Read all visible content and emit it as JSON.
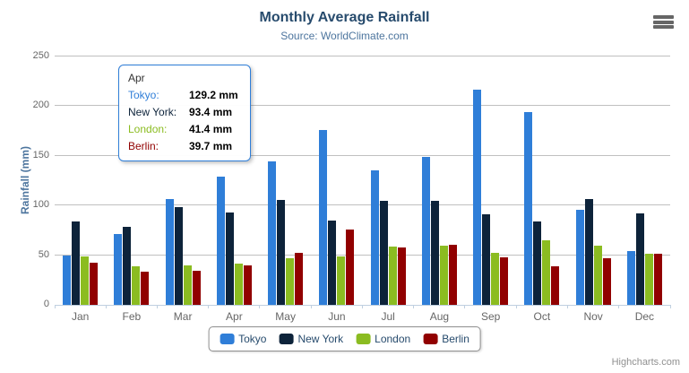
{
  "header": {
    "title": "Monthly Average Rainfall",
    "subtitle": "Source: WorldClimate.com"
  },
  "colors": {
    "title": "#274b6d",
    "subtitle": "#4d759e",
    "gridline": "#C0C0C0",
    "axis_line": "#C0D0E0",
    "axis_label": "#666666",
    "legend_border": "#909090",
    "tooltip_border": "#2f7ed8"
  },
  "chart_data": {
    "type": "bar",
    "title": "Monthly Average Rainfall",
    "subtitle": "Source: WorldClimate.com",
    "categories": [
      "Jan",
      "Feb",
      "Mar",
      "Apr",
      "May",
      "Jun",
      "Jul",
      "Aug",
      "Sep",
      "Oct",
      "Nov",
      "Dec"
    ],
    "series": [
      {
        "name": "Tokyo",
        "color": "#2f7ed8",
        "values": [
          49.9,
          71.5,
          106.4,
          129.2,
          144.0,
          176.0,
          135.6,
          148.5,
          216.4,
          194.1,
          95.6,
          54.4
        ]
      },
      {
        "name": "New York",
        "color": "#0d233a",
        "values": [
          83.6,
          78.8,
          98.5,
          93.4,
          106.0,
          84.5,
          105.0,
          104.3,
          91.2,
          83.5,
          106.6,
          92.3
        ]
      },
      {
        "name": "London",
        "color": "#8bbc21",
        "values": [
          48.9,
          38.8,
          39.3,
          41.4,
          47.0,
          48.3,
          59.0,
          59.6,
          52.4,
          65.2,
          59.3,
          51.2
        ]
      },
      {
        "name": "Berlin",
        "color": "#910000",
        "values": [
          42.4,
          33.2,
          34.5,
          39.7,
          52.6,
          75.5,
          57.4,
          60.4,
          47.6,
          39.1,
          46.8,
          51.1
        ]
      }
    ],
    "xlabel": "",
    "ylabel": "Rainfall (mm)",
    "ylim": [
      0,
      250
    ],
    "yticks": [
      0,
      50,
      100,
      150,
      200,
      250
    ],
    "grid": true,
    "legend_position": "bottom"
  },
  "tooltip": {
    "header": "Apr",
    "rows": [
      {
        "name": "Tokyo:",
        "value": "129.2 mm",
        "color": "#2f7ed8"
      },
      {
        "name": "New York:",
        "value": "93.4 mm",
        "color": "#0d233a"
      },
      {
        "name": "London:",
        "value": "41.4 mm",
        "color": "#8bbc21"
      },
      {
        "name": "Berlin:",
        "value": "39.7 mm",
        "color": "#910000"
      }
    ]
  },
  "credits": "Highcharts.com"
}
